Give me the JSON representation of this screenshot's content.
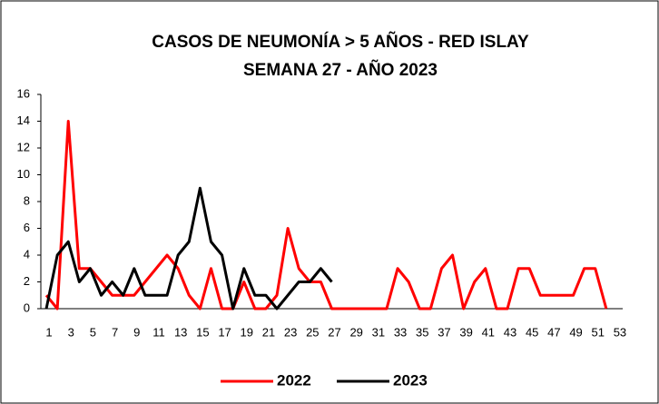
{
  "chart_data": {
    "type": "line",
    "title": [
      "CASOS DE NEUMONÍA > 5 AÑOS - RED ISLAY",
      "SEMANA 27 -  AÑO 2023"
    ],
    "categories": [
      "1",
      null,
      "3",
      null,
      "5",
      null,
      "7",
      null,
      "9",
      null,
      "11",
      null,
      "13",
      null,
      "15",
      null,
      "17",
      null,
      "19",
      null,
      "21",
      null,
      "23",
      null,
      "25",
      null,
      "27",
      null,
      "29",
      null,
      "31",
      null,
      "33",
      null,
      "35",
      null,
      "37",
      null,
      "39",
      null,
      "41",
      null,
      "43",
      null,
      "45",
      null,
      "47",
      null,
      "49",
      null,
      "51",
      null,
      "53"
    ],
    "series": [
      {
        "name": "2022",
        "color": "#ff0000",
        "values": [
          1,
          0,
          14,
          3,
          3,
          2,
          1,
          1,
          1,
          2,
          3,
          4,
          3,
          1,
          0,
          3,
          0,
          0,
          2,
          0,
          0,
          1,
          6,
          3,
          2,
          2,
          0,
          0,
          0,
          0,
          0,
          0,
          3,
          2,
          0,
          0,
          3,
          4,
          0,
          2,
          3,
          0,
          0,
          3,
          3,
          1,
          1,
          1,
          1,
          3,
          3,
          0,
          null
        ]
      },
      {
        "name": "2023",
        "color": "#000000",
        "values": [
          0,
          4,
          5,
          2,
          3,
          1,
          2,
          1,
          3,
          1,
          1,
          1,
          4,
          5,
          9,
          5,
          4,
          0,
          3,
          1,
          1,
          0,
          1,
          2,
          2,
          3,
          2,
          null,
          null,
          null,
          null,
          null,
          null,
          null,
          null,
          null,
          null,
          null,
          null,
          null,
          null,
          null,
          null,
          null,
          null,
          null,
          null,
          null,
          null,
          null,
          null,
          null,
          null
        ]
      }
    ],
    "ylim": [
      0,
      16
    ],
    "yticks": [
      0,
      2,
      4,
      6,
      8,
      10,
      12,
      14,
      16
    ],
    "legend": "bottom"
  }
}
